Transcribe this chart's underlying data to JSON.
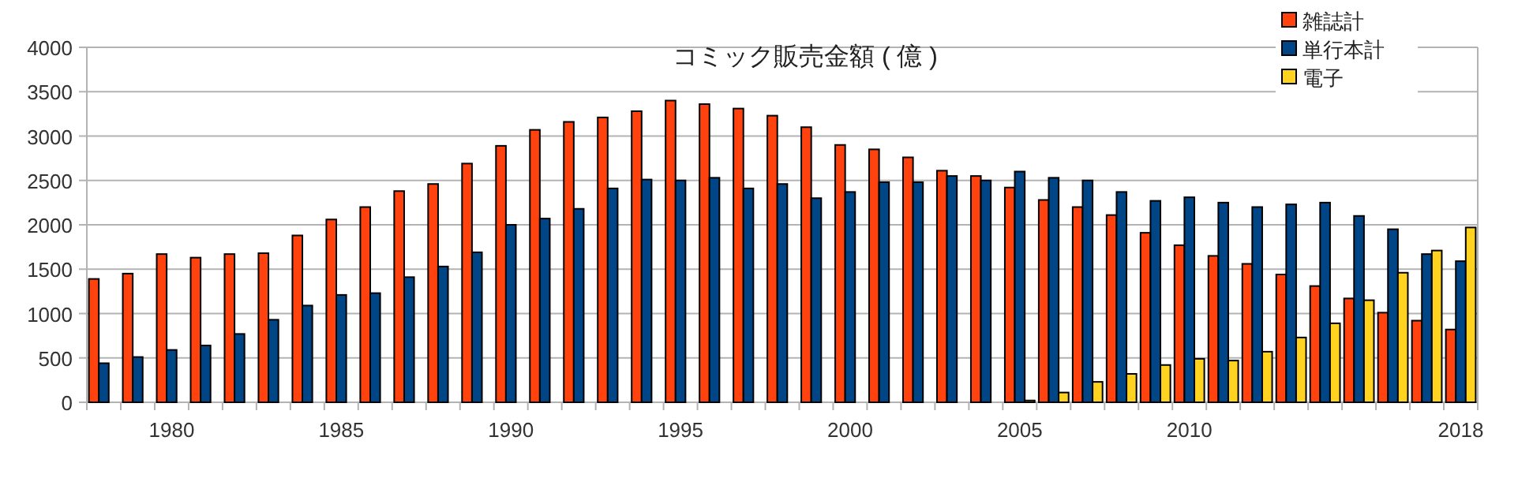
{
  "chart_data": {
    "type": "bar",
    "title": "コミック販売金額 ( 億 )",
    "categories": [
      null,
      null,
      "1980",
      null,
      null,
      null,
      null,
      "1985",
      null,
      null,
      null,
      null,
      "1990",
      null,
      null,
      null,
      null,
      "1995",
      null,
      null,
      null,
      null,
      "2000",
      null,
      null,
      null,
      null,
      "2005",
      null,
      null,
      null,
      null,
      "2010",
      null,
      null,
      null,
      null,
      null,
      null,
      null,
      "2018"
    ],
    "series": [
      {
        "name": "雑誌計",
        "color": "#ff420e",
        "values": [
          1390,
          1450,
          1670,
          1630,
          1670,
          1680,
          1880,
          2060,
          2200,
          2380,
          2460,
          2690,
          2890,
          3070,
          3160,
          3210,
          3280,
          3400,
          3360,
          3310,
          3230,
          3100,
          2900,
          2850,
          2760,
          2610,
          2550,
          2420,
          2280,
          2200,
          2110,
          1910,
          1770,
          1650,
          1560,
          1440,
          1310,
          1170,
          1010,
          920,
          820
        ]
      },
      {
        "name": "単行本計",
        "color": "#004586",
        "values": [
          440,
          510,
          590,
          640,
          770,
          930,
          1090,
          1210,
          1230,
          1410,
          1530,
          1690,
          2000,
          2070,
          2180,
          2410,
          2510,
          2500,
          2530,
          2410,
          2460,
          2300,
          2370,
          2480,
          2480,
          2550,
          2500,
          2600,
          2530,
          2500,
          2370,
          2270,
          2310,
          2250,
          2200,
          2230,
          2250,
          2100,
          1950,
          1670,
          1590
        ]
      },
      {
        "name": "電子",
        "color": "#ffd320",
        "values": [
          null,
          null,
          null,
          null,
          null,
          null,
          null,
          null,
          null,
          null,
          null,
          null,
          null,
          null,
          null,
          null,
          null,
          null,
          null,
          null,
          null,
          null,
          null,
          null,
          null,
          null,
          null,
          20,
          110,
          230,
          320,
          420,
          490,
          470,
          570,
          730,
          890,
          1150,
          1460,
          1710,
          1970
        ]
      }
    ],
    "ylim": [
      0,
      4000
    ],
    "yticks": [
      0,
      500,
      1000,
      1500,
      2000,
      2500,
      3000,
      3500,
      4000
    ],
    "grid": "y",
    "legend": "top right"
  }
}
